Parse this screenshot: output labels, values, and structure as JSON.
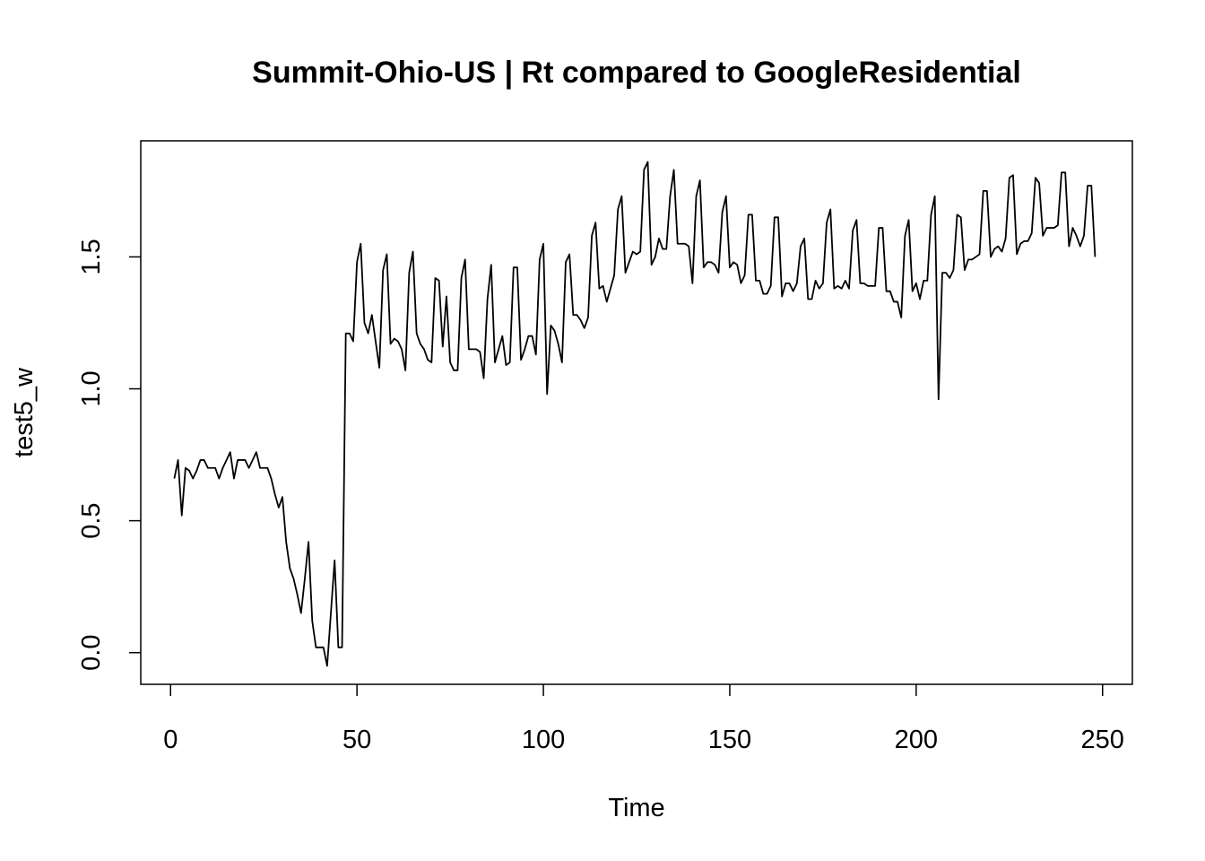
{
  "chart_data": {
    "type": "line",
    "title": "Summit-Ohio-US | Rt compared to GoogleResidential",
    "xlabel": "Time",
    "ylabel": "test5_w",
    "xlim": [
      -8,
      258
    ],
    "ylim": [
      -0.12,
      1.94
    ],
    "xticks": [
      0,
      50,
      100,
      150,
      200,
      250
    ],
    "xtick_labels": [
      "0",
      "50",
      "100",
      "150",
      "200",
      "250"
    ],
    "yticks": [
      0.0,
      0.5,
      1.0,
      1.5
    ],
    "ytick_labels": [
      "0.0",
      "0.5",
      "1.0",
      "1.5"
    ],
    "grid": false,
    "legend": "none",
    "series": [
      {
        "color": "#000000",
        "x": [
          1,
          2,
          3,
          4,
          5,
          6,
          7,
          8,
          9,
          10,
          11,
          12,
          13,
          14,
          15,
          16,
          17,
          18,
          19,
          20,
          21,
          22,
          23,
          24,
          25,
          26,
          27,
          28,
          29,
          30,
          31,
          32,
          33,
          34,
          35,
          36,
          37,
          38,
          39,
          40,
          41,
          42,
          43,
          44,
          45,
          46,
          47,
          48,
          49,
          50,
          51,
          52,
          53,
          54,
          55,
          56,
          57,
          58,
          59,
          60,
          61,
          62,
          63,
          64,
          65,
          66,
          67,
          68,
          69,
          70,
          71,
          72,
          73,
          74,
          75,
          76,
          77,
          78,
          79,
          80,
          81,
          82,
          83,
          84,
          85,
          86,
          87,
          88,
          89,
          90,
          91,
          92,
          93,
          94,
          95,
          96,
          97,
          98,
          99,
          100,
          101,
          102,
          103,
          104,
          105,
          106,
          107,
          108,
          109,
          110,
          111,
          112,
          113,
          114,
          115,
          116,
          117,
          118,
          119,
          120,
          121,
          122,
          123,
          124,
          125,
          126,
          127,
          128,
          129,
          130,
          131,
          132,
          133,
          134,
          135,
          136,
          137,
          138,
          139,
          140,
          141,
          142,
          143,
          144,
          145,
          146,
          147,
          148,
          149,
          150,
          151,
          152,
          153,
          154,
          155,
          156,
          157,
          158,
          159,
          160,
          161,
          162,
          163,
          164,
          165,
          166,
          167,
          168,
          169,
          170,
          171,
          172,
          173,
          174,
          175,
          176,
          177,
          178,
          179,
          180,
          181,
          182,
          183,
          184,
          185,
          186,
          187,
          188,
          189,
          190,
          191,
          192,
          193,
          194,
          195,
          196,
          197,
          198,
          199,
          200,
          201,
          202,
          203,
          204,
          205,
          206,
          207,
          208,
          209,
          210,
          211,
          212,
          213,
          214,
          215,
          216,
          217,
          218,
          219,
          220,
          221,
          222,
          223,
          224,
          225,
          226,
          227,
          228,
          229,
          230,
          231,
          232,
          233,
          234,
          235,
          236,
          237,
          238,
          239,
          240,
          241,
          242,
          243,
          244,
          245,
          246,
          247,
          248
        ],
        "y": [
          0.66,
          0.73,
          0.52,
          0.7,
          0.69,
          0.66,
          0.69,
          0.73,
          0.73,
          0.7,
          0.7,
          0.7,
          0.66,
          0.7,
          0.73,
          0.76,
          0.66,
          0.73,
          0.73,
          0.73,
          0.7,
          0.73,
          0.76,
          0.7,
          0.7,
          0.7,
          0.66,
          0.6,
          0.55,
          0.59,
          0.42,
          0.32,
          0.28,
          0.22,
          0.15,
          0.28,
          0.42,
          0.12,
          0.02,
          0.02,
          0.02,
          -0.05,
          0.15,
          0.35,
          0.02,
          0.02,
          1.21,
          1.21,
          1.18,
          1.48,
          1.55,
          1.25,
          1.21,
          1.28,
          1.18,
          1.08,
          1.45,
          1.51,
          1.17,
          1.19,
          1.18,
          1.15,
          1.07,
          1.44,
          1.52,
          1.21,
          1.17,
          1.15,
          1.11,
          1.1,
          1.42,
          1.41,
          1.16,
          1.35,
          1.1,
          1.07,
          1.07,
          1.42,
          1.49,
          1.15,
          1.15,
          1.15,
          1.14,
          1.04,
          1.34,
          1.47,
          1.1,
          1.15,
          1.2,
          1.09,
          1.1,
          1.46,
          1.46,
          1.11,
          1.15,
          1.2,
          1.2,
          1.13,
          1.49,
          1.55,
          0.98,
          1.24,
          1.22,
          1.17,
          1.1,
          1.48,
          1.51,
          1.28,
          1.28,
          1.26,
          1.23,
          1.27,
          1.58,
          1.63,
          1.38,
          1.39,
          1.33,
          1.38,
          1.43,
          1.68,
          1.73,
          1.44,
          1.48,
          1.52,
          1.51,
          1.52,
          1.83,
          1.86,
          1.47,
          1.5,
          1.57,
          1.53,
          1.53,
          1.73,
          1.83,
          1.55,
          1.55,
          1.55,
          1.54,
          1.4,
          1.73,
          1.79,
          1.46,
          1.48,
          1.48,
          1.47,
          1.44,
          1.67,
          1.73,
          1.46,
          1.48,
          1.47,
          1.4,
          1.43,
          1.66,
          1.66,
          1.41,
          1.41,
          1.36,
          1.36,
          1.39,
          1.65,
          1.65,
          1.35,
          1.4,
          1.4,
          1.37,
          1.4,
          1.54,
          1.57,
          1.34,
          1.34,
          1.41,
          1.38,
          1.4,
          1.63,
          1.68,
          1.38,
          1.39,
          1.38,
          1.41,
          1.38,
          1.6,
          1.64,
          1.4,
          1.4,
          1.39,
          1.39,
          1.39,
          1.61,
          1.61,
          1.37,
          1.37,
          1.33,
          1.33,
          1.27,
          1.58,
          1.64,
          1.37,
          1.4,
          1.34,
          1.41,
          1.41,
          1.66,
          1.73,
          0.96,
          1.44,
          1.44,
          1.42,
          1.45,
          1.66,
          1.65,
          1.45,
          1.49,
          1.49,
          1.5,
          1.51,
          1.75,
          1.75,
          1.5,
          1.53,
          1.54,
          1.52,
          1.57,
          1.8,
          1.81,
          1.51,
          1.55,
          1.56,
          1.56,
          1.59,
          1.8,
          1.78,
          1.58,
          1.61,
          1.61,
          1.61,
          1.62,
          1.82,
          1.82,
          1.54,
          1.61,
          1.58,
          1.54,
          1.58,
          1.77,
          1.77,
          1.5
        ]
      }
    ]
  }
}
